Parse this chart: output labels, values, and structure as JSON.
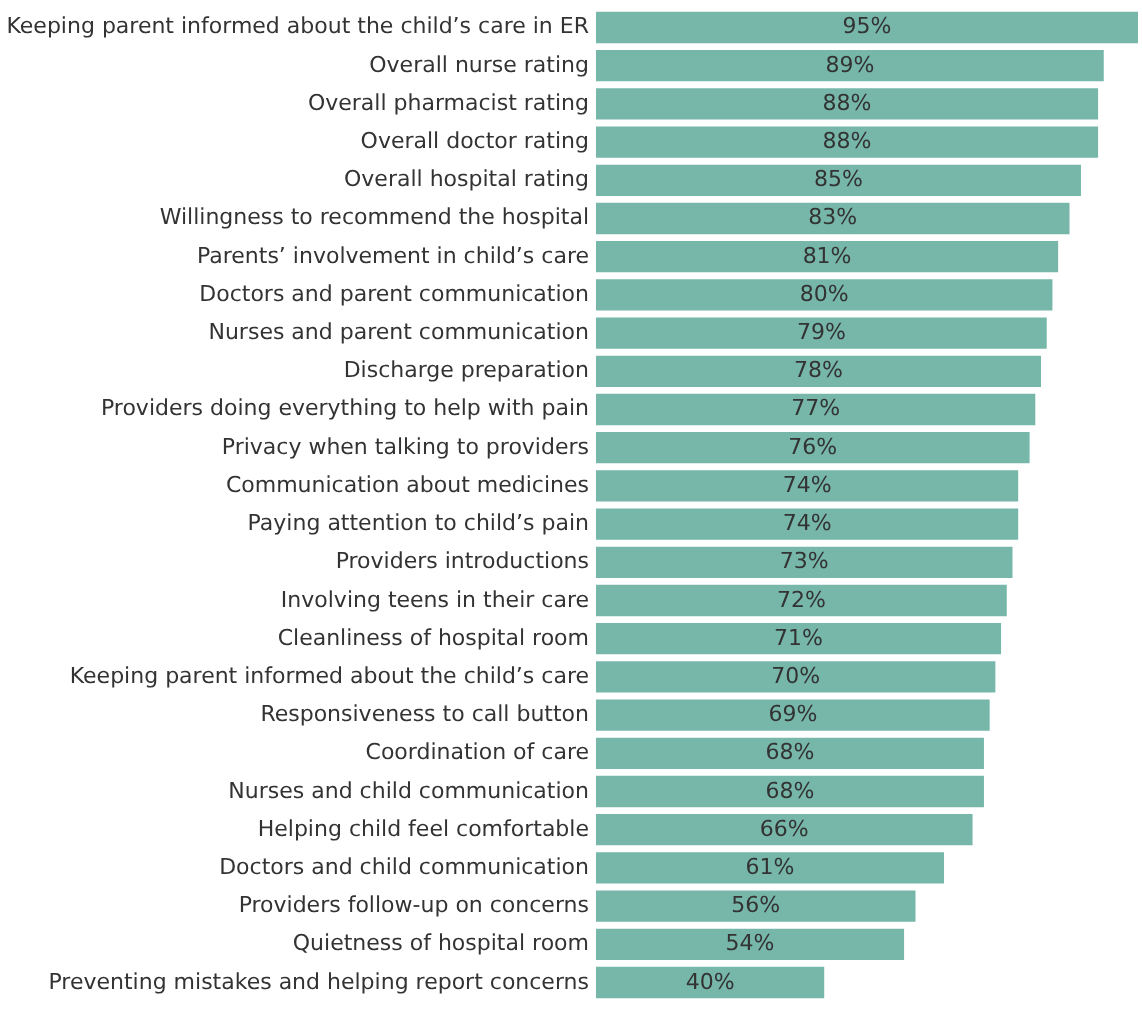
{
  "chart_data": {
    "type": "bar",
    "orientation": "horizontal",
    "data_labels": true,
    "color": "#76b7aa",
    "categories": [
      "Keeping parent informed about the child’s care in ER",
      "Overall nurse rating",
      "Overall pharmacist rating",
      "Overall doctor rating",
      "Overall hospital rating",
      "Willingness to recommend the hospital",
      "Parents’ involvement in child’s care",
      "Doctors and parent communication",
      "Nurses and parent communication",
      "Discharge preparation",
      "Providers doing everything to help with pain",
      "Privacy when talking to providers",
      "Communication about medicines",
      "Paying attention to child’s pain",
      "Providers introductions",
      "Involving teens in their care",
      "Cleanliness of hospital room",
      "Keeping parent informed about the child’s care",
      "Responsiveness to call button",
      "Coordination of care",
      "Nurses and child communication",
      "Helping child feel comfortable",
      "Doctors and child communication",
      "Providers follow-up on concerns",
      "Quietness of hospital room",
      "Preventing mistakes and helping report concerns"
    ],
    "values": [
      95,
      89,
      88,
      88,
      85,
      83,
      81,
      80,
      79,
      78,
      77,
      76,
      74,
      74,
      73,
      72,
      71,
      70,
      69,
      68,
      68,
      66,
      61,
      56,
      54,
      40
    ],
    "value_labels": [
      "95%",
      "89%",
      "88%",
      "88%",
      "85%",
      "83%",
      "81%",
      "80%",
      "79%",
      "78%",
      "77%",
      "76%",
      "74%",
      "74%",
      "73%",
      "72%",
      "71%",
      "70%",
      "69%",
      "68%",
      "68%",
      "66%",
      "61%",
      "56%",
      "54%",
      "40%"
    ]
  }
}
